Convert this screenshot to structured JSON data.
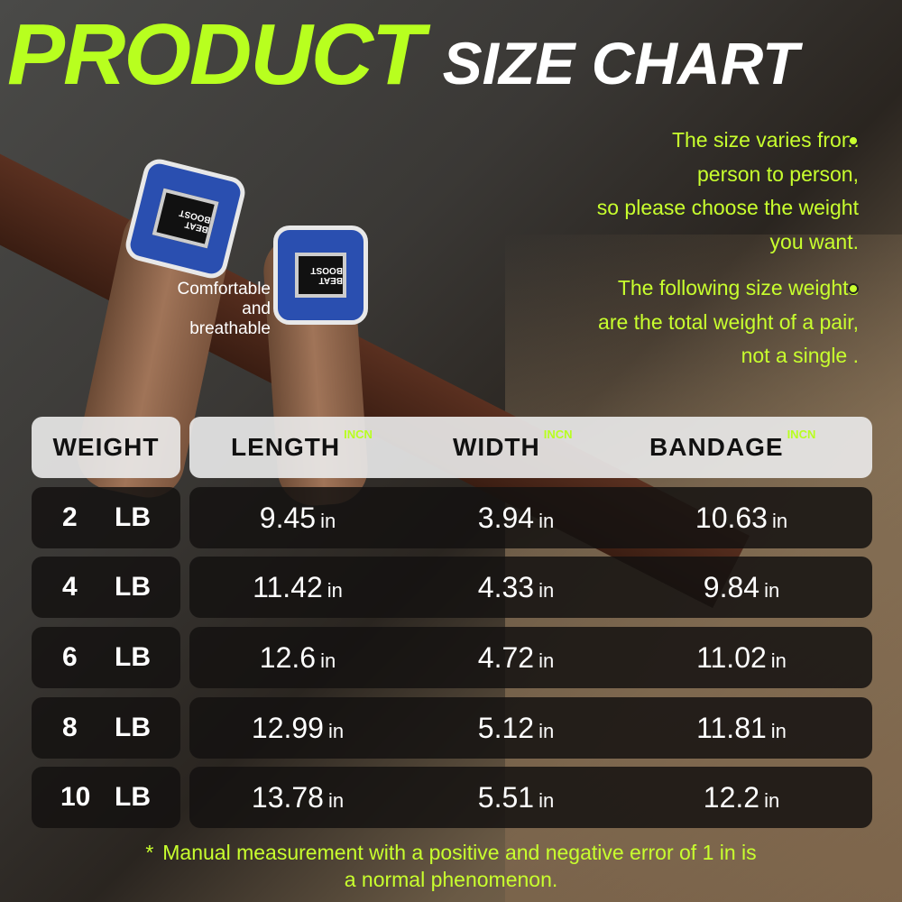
{
  "title": {
    "part1": "PRODUCT",
    "part2": "SIZE CHART"
  },
  "notes": [
    "The size varies from",
    "person to person,",
    "so please choose the weight",
    "you want.",
    "The following size weights",
    "are the total weight of a pair,",
    "not a single ."
  ],
  "feature_label": [
    "Comfortable",
    "and",
    "breathable"
  ],
  "brand_logo": "BEAT BOOST",
  "accent_color": "#b8ff1f",
  "table": {
    "headers": {
      "weight": "WEIGHT",
      "length": "LENGTH",
      "width": "WIDTH",
      "bandage": "BANDAGE",
      "unit": "INCN"
    },
    "value_unit": "in",
    "rows": [
      {
        "num": "2",
        "lb": "LB",
        "length": "9.45",
        "width": "3.94",
        "bandage": "10.63"
      },
      {
        "num": "4",
        "lb": "LB",
        "length": "11.42",
        "width": "4.33",
        "bandage": "9.84"
      },
      {
        "num": "6",
        "lb": "LB",
        "length": "12.6",
        "width": "4.72",
        "bandage": "11.02"
      },
      {
        "num": "8",
        "lb": "LB",
        "length": "12.99",
        "width": "5.12",
        "bandage": "11.81"
      },
      {
        "num": "10",
        "lb": "LB",
        "length": "13.78",
        "width": "5.51",
        "bandage": "12.2"
      }
    ]
  },
  "footnote": {
    "star": "*",
    "line1": "Manual measurement with a positive and negative error of 1 in is",
    "line2": "a normal phenomenon."
  }
}
